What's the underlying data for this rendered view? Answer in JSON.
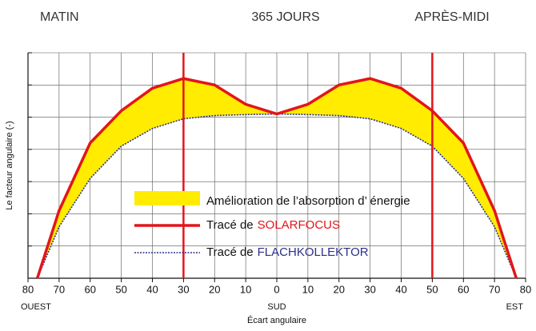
{
  "chart_data": {
    "type": "line",
    "top_labels": [
      "MATIN",
      "365 JOURS",
      "APRÈS-MIDI"
    ],
    "direction_labels": [
      "OUEST",
      "SUD",
      "EST"
    ],
    "x_label": "Écart angulaire",
    "y_label": "Le facteur angulaire (-)",
    "x": [
      -77,
      -70,
      -60,
      -50,
      -40,
      -30,
      -20,
      -10,
      0,
      10,
      20,
      30,
      40,
      50,
      60,
      70,
      77
    ],
    "series": [
      {
        "name": "SOLARFOCUS",
        "label_prefix": "Tracé de",
        "color": "#e3151a",
        "values": [
          0,
          2.1,
          4.2,
          5.2,
          5.9,
          6.2,
          6.0,
          5.4,
          5.1,
          5.4,
          6.0,
          6.2,
          5.9,
          5.2,
          4.2,
          2.1,
          0
        ]
      },
      {
        "name": "FLACHKOLLEKTOR",
        "label_prefix": "Tracé de",
        "color": "#2b2f8c",
        "values": [
          0,
          1.6,
          3.1,
          4.1,
          4.65,
          4.95,
          5.05,
          5.08,
          5.1,
          5.08,
          5.05,
          4.95,
          4.65,
          4.1,
          3.1,
          1.6,
          0
        ]
      }
    ],
    "fill_label": "Amélioration de l’absorption d’ énergie",
    "fill_color": "#ffec00",
    "vlines": [
      -30,
      50
    ],
    "xlim": [
      -80,
      80
    ],
    "xticks": [
      {
        "value": -80,
        "label": "80"
      },
      {
        "value": -70,
        "label": "70"
      },
      {
        "value": -60,
        "label": "60"
      },
      {
        "value": -50,
        "label": "50"
      },
      {
        "value": -40,
        "label": "40"
      },
      {
        "value": -30,
        "label": "30"
      },
      {
        "value": -20,
        "label": "20"
      },
      {
        "value": -10,
        "label": "10"
      },
      0,
      10,
      20,
      30,
      40,
      50,
      60,
      70,
      80
    ],
    "ylim": [
      0,
      7
    ],
    "yticks": [
      0,
      1,
      2,
      3,
      4,
      5,
      6,
      7
    ],
    "grid": true
  }
}
